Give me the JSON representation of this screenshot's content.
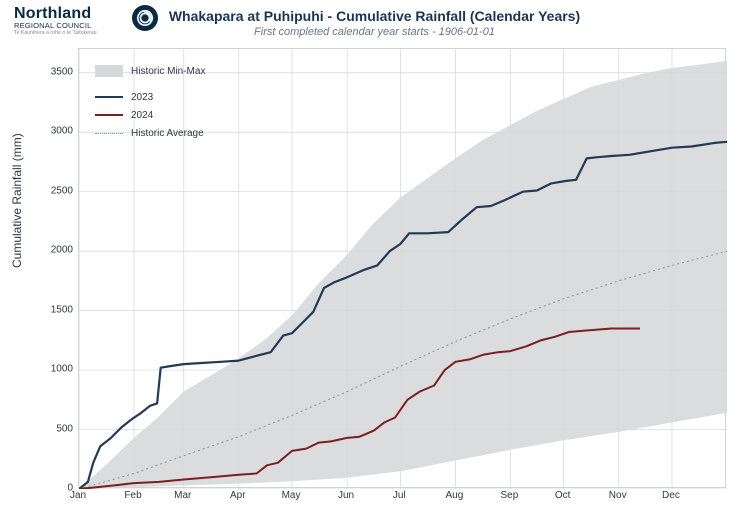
{
  "logo": {
    "main": "Northland",
    "sub": "REGIONAL COUNCIL",
    "maori": "Te Kaunihera a rohe o te Taitokerau"
  },
  "chart": {
    "title": "Whakapara at Puhipuhi - Cumulative Rainfall (Calendar Years)",
    "subtitle": "First completed calendar year starts - 1906-01-01",
    "ylabel": "Cumulative Rainfall (mm)",
    "ylim": [
      0,
      3700
    ],
    "yticks": [
      0,
      500,
      1000,
      1500,
      2000,
      2500,
      3000,
      3500
    ],
    "xlim": [
      0,
      365
    ],
    "xticks_pos": [
      0,
      31,
      59,
      90,
      120,
      151,
      181,
      212,
      243,
      273,
      304,
      334
    ],
    "xticks_lab": [
      "Jan",
      "Feb",
      "Mar",
      "Apr",
      "May",
      "Jun",
      "Jul",
      "Aug",
      "Sep",
      "Oct",
      "Nov",
      "Dec"
    ],
    "grid_color": "#d2d6da",
    "bg": "#ffffff",
    "band_color": "#d7d8da",
    "legend": {
      "items": [
        {
          "type": "band",
          "label": "Historic Min-Max",
          "color": "#d7d8da"
        },
        {
          "type": "line",
          "label": "2023",
          "color": "#223a57",
          "dash": "solid",
          "width": 2
        },
        {
          "type": "line",
          "label": "2024",
          "color": "#7a1f1f",
          "dash": "solid",
          "width": 2
        },
        {
          "type": "line",
          "label": "Historic Average",
          "color": "#8a8f95",
          "dash": "dotted",
          "width": 1
        }
      ]
    },
    "series": {
      "band_upper": [
        [
          0,
          0
        ],
        [
          15,
          200
        ],
        [
          31,
          430
        ],
        [
          45,
          610
        ],
        [
          59,
          820
        ],
        [
          75,
          960
        ],
        [
          90,
          1100
        ],
        [
          105,
          1260
        ],
        [
          120,
          1460
        ],
        [
          135,
          1730
        ],
        [
          151,
          1970
        ],
        [
          165,
          2220
        ],
        [
          181,
          2450
        ],
        [
          197,
          2620
        ],
        [
          212,
          2780
        ],
        [
          227,
          2930
        ],
        [
          243,
          3060
        ],
        [
          258,
          3180
        ],
        [
          273,
          3280
        ],
        [
          288,
          3380
        ],
        [
          304,
          3440
        ],
        [
          320,
          3500
        ],
        [
          334,
          3540
        ],
        [
          350,
          3570
        ],
        [
          365,
          3600
        ]
      ],
      "band_lower": [
        [
          0,
          0
        ],
        [
          31,
          15
        ],
        [
          59,
          30
        ],
        [
          90,
          45
        ],
        [
          120,
          65
        ],
        [
          151,
          95
        ],
        [
          181,
          150
        ],
        [
          212,
          240
        ],
        [
          243,
          330
        ],
        [
          273,
          410
        ],
        [
          304,
          480
        ],
        [
          334,
          560
        ],
        [
          365,
          640
        ]
      ],
      "avg": [
        [
          0,
          0
        ],
        [
          31,
          130
        ],
        [
          59,
          280
        ],
        [
          90,
          440
        ],
        [
          120,
          620
        ],
        [
          151,
          820
        ],
        [
          181,
          1030
        ],
        [
          212,
          1240
        ],
        [
          243,
          1430
        ],
        [
          273,
          1600
        ],
        [
          304,
          1750
        ],
        [
          334,
          1880
        ],
        [
          365,
          2000
        ]
      ],
      "y2023": [
        [
          0,
          0
        ],
        [
          5,
          60
        ],
        [
          8,
          220
        ],
        [
          12,
          360
        ],
        [
          18,
          430
        ],
        [
          24,
          520
        ],
        [
          30,
          590
        ],
        [
          35,
          640
        ],
        [
          40,
          700
        ],
        [
          44,
          720
        ],
        [
          46,
          1020
        ],
        [
          50,
          1030
        ],
        [
          59,
          1050
        ],
        [
          70,
          1060
        ],
        [
          80,
          1070
        ],
        [
          90,
          1080
        ],
        [
          100,
          1120
        ],
        [
          108,
          1150
        ],
        [
          115,
          1290
        ],
        [
          120,
          1310
        ],
        [
          126,
          1400
        ],
        [
          132,
          1490
        ],
        [
          138,
          1690
        ],
        [
          144,
          1740
        ],
        [
          151,
          1780
        ],
        [
          160,
          1840
        ],
        [
          168,
          1880
        ],
        [
          175,
          2000
        ],
        [
          181,
          2060
        ],
        [
          186,
          2150
        ],
        [
          196,
          2150
        ],
        [
          208,
          2160
        ],
        [
          216,
          2270
        ],
        [
          224,
          2370
        ],
        [
          232,
          2380
        ],
        [
          240,
          2430
        ],
        [
          250,
          2500
        ],
        [
          258,
          2510
        ],
        [
          266,
          2570
        ],
        [
          274,
          2590
        ],
        [
          280,
          2600
        ],
        [
          286,
          2780
        ],
        [
          292,
          2790
        ],
        [
          300,
          2800
        ],
        [
          310,
          2810
        ],
        [
          334,
          2870
        ],
        [
          345,
          2880
        ],
        [
          358,
          2910
        ],
        [
          365,
          2920
        ]
      ],
      "y2024": [
        [
          0,
          0
        ],
        [
          20,
          30
        ],
        [
          31,
          50
        ],
        [
          45,
          60
        ],
        [
          59,
          80
        ],
        [
          75,
          100
        ],
        [
          90,
          120
        ],
        [
          100,
          130
        ],
        [
          106,
          200
        ],
        [
          112,
          220
        ],
        [
          120,
          320
        ],
        [
          128,
          340
        ],
        [
          135,
          390
        ],
        [
          142,
          400
        ],
        [
          151,
          430
        ],
        [
          158,
          440
        ],
        [
          166,
          490
        ],
        [
          172,
          560
        ],
        [
          178,
          600
        ],
        [
          185,
          750
        ],
        [
          192,
          820
        ],
        [
          200,
          870
        ],
        [
          206,
          1000
        ],
        [
          212,
          1070
        ],
        [
          220,
          1090
        ],
        [
          228,
          1130
        ],
        [
          236,
          1150
        ],
        [
          243,
          1160
        ],
        [
          252,
          1200
        ],
        [
          260,
          1250
        ],
        [
          268,
          1280
        ],
        [
          276,
          1320
        ],
        [
          284,
          1330
        ],
        [
          292,
          1340
        ],
        [
          300,
          1350
        ],
        [
          308,
          1350
        ],
        [
          316,
          1350
        ]
      ]
    },
    "colors": {
      "y2023": "#223a57",
      "y2024": "#7a1f1f",
      "avg": "#8a8f95",
      "axis": "#cfd3d7",
      "text": "#30383f"
    },
    "line_widths": {
      "y2023": 2.2,
      "y2024": 2.0,
      "avg": 1.0
    },
    "title_fontsize": 14,
    "subtitle_fontsize": 11,
    "ylabel_fontsize": 12,
    "tick_fontsize": 10
  }
}
